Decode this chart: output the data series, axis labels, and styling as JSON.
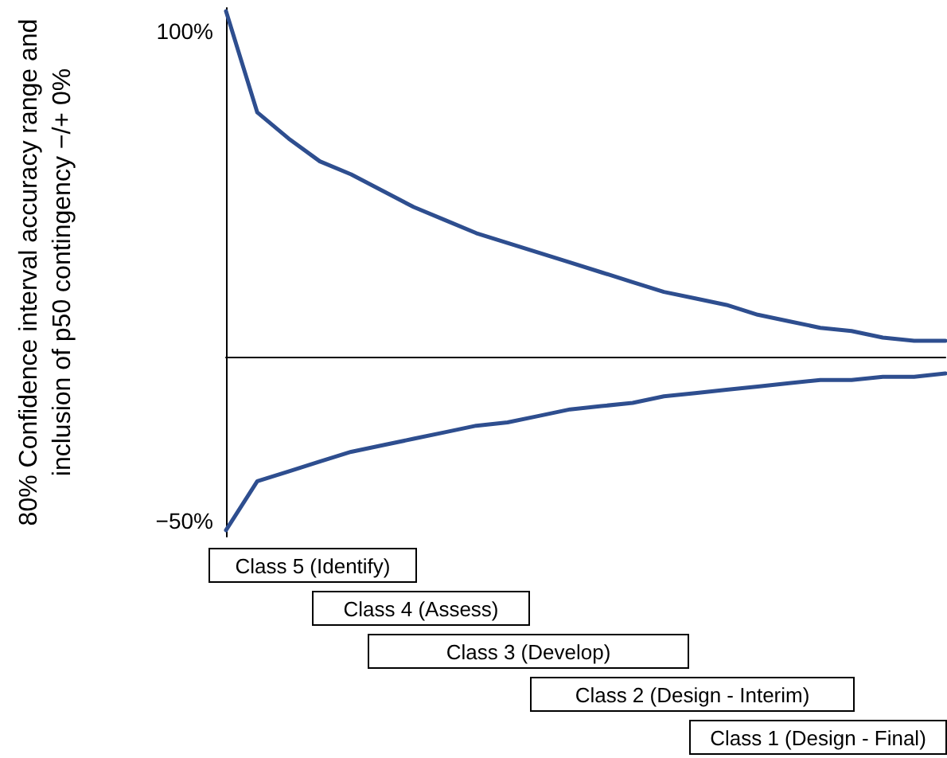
{
  "chart_data": {
    "type": "line",
    "ylabel": "80% Confidence interval accuracy range and\ninclusion of p50 contingency −/+ 0%",
    "categories": [
      null,
      null,
      null,
      null,
      null,
      null,
      null,
      null,
      null,
      null,
      null,
      null,
      null,
      null,
      null,
      null,
      null,
      null,
      null,
      null,
      null,
      null,
      null,
      null
    ],
    "series": [
      {
        "color": "#2e4e8f",
        "values": [
          106,
          75,
          67,
          60,
          56,
          51,
          46,
          42,
          38,
          35,
          32,
          29,
          26,
          23,
          20,
          18,
          16,
          13,
          11,
          9,
          8,
          6,
          5,
          5
        ]
      },
      {
        "color": "#2e4e8f",
        "values": [
          -53,
          -38,
          -35,
          -32,
          -29,
          -27,
          -25,
          -23,
          -21,
          -20,
          -18,
          -16,
          -15,
          -14,
          -12,
          -11,
          -10,
          -9,
          -8,
          -7,
          -7,
          -6,
          -6,
          -5
        ]
      }
    ],
    "ylim": [
      -55,
      107
    ],
    "yticks": [
      {
        "value": 100,
        "label": "100%"
      },
      {
        "value": -50,
        "label": "−50%"
      }
    ],
    "tick_labels": "y",
    "grid": false,
    "marker": "none",
    "line_style": "solid",
    "annotations": [
      "Class 5 (Identify)",
      "Class 4 (Assess)",
      "Class 3 (Develop)",
      "Class 2 (Design - Interim)",
      "Class 1 (Design - Final)"
    ]
  }
}
